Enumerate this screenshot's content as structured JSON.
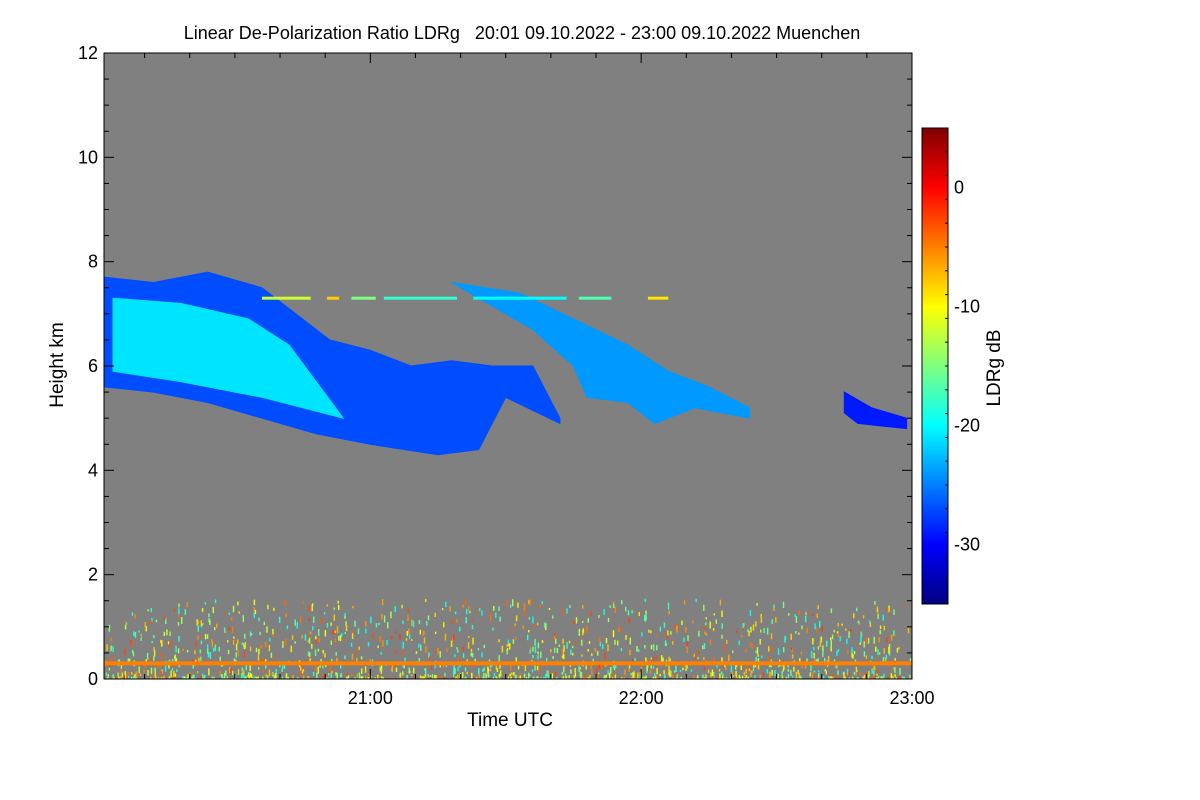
{
  "chart_data": {
    "type": "heatmap",
    "title": "Linear De-Polarization Ratio LDRg   20:01 09.10.2022 - 23:00 09.10.2022 Muenchen",
    "xlabel": "Time UTC",
    "ylabel": "Height km",
    "x_unit": "hours UTC",
    "xlim": [
      20.0167,
      23.0
    ],
    "ylim": [
      0,
      12
    ],
    "x_ticks": [
      {
        "value": 21.0,
        "label": "21:00"
      },
      {
        "value": 22.0,
        "label": "22:00"
      },
      {
        "value": 23.0,
        "label": "23:00"
      }
    ],
    "y_ticks": [
      {
        "value": 0,
        "label": "0"
      },
      {
        "value": 2,
        "label": "2"
      },
      {
        "value": 4,
        "label": "4"
      },
      {
        "value": 6,
        "label": "6"
      },
      {
        "value": 8,
        "label": "8"
      },
      {
        "value": 10,
        "label": "10"
      },
      {
        "value": 12,
        "label": "12"
      }
    ],
    "background_color": "#808080",
    "colorbar": {
      "label": "LDRg dB",
      "range": [
        -35,
        5
      ],
      "ticks": [
        {
          "value": 0,
          "label": "0"
        },
        {
          "value": -10,
          "label": "-10"
        },
        {
          "value": -20,
          "label": "-20"
        },
        {
          "value": -30,
          "label": "-30"
        }
      ],
      "colormap": [
        "#00007f",
        "#0000ff",
        "#007fff",
        "#00ffff",
        "#7fff7f",
        "#ffff00",
        "#ff7f00",
        "#ff0000",
        "#7f0000"
      ]
    },
    "features": [
      {
        "name": "cirrus-band-main",
        "top": [
          [
            20.02,
            7.7
          ],
          [
            20.2,
            7.6
          ],
          [
            20.4,
            7.8
          ],
          [
            20.6,
            7.5
          ],
          [
            20.75,
            6.9
          ],
          [
            20.85,
            6.5
          ],
          [
            21.0,
            6.3
          ],
          [
            21.15,
            6.0
          ],
          [
            21.3,
            6.1
          ],
          [
            21.45,
            6.0
          ],
          [
            21.6,
            6.0
          ],
          [
            21.7,
            5.0
          ]
        ],
        "bottom": [
          [
            21.7,
            4.9
          ],
          [
            21.5,
            5.4
          ],
          [
            21.4,
            4.4
          ],
          [
            21.25,
            4.3
          ],
          [
            21.0,
            4.5
          ],
          [
            20.8,
            4.7
          ],
          [
            20.6,
            5.0
          ],
          [
            20.4,
            5.3
          ],
          [
            20.2,
            5.5
          ],
          [
            20.02,
            5.6
          ]
        ],
        "ldr_db": -27
      },
      {
        "name": "cirrus-inner-streaks",
        "top": [
          [
            20.05,
            7.3
          ],
          [
            20.3,
            7.2
          ],
          [
            20.55,
            6.9
          ],
          [
            20.7,
            6.4
          ]
        ],
        "bottom": [
          [
            20.9,
            5.0
          ],
          [
            20.6,
            5.4
          ],
          [
            20.3,
            5.7
          ],
          [
            20.05,
            5.9
          ]
        ],
        "ldr_db": -21
      },
      {
        "name": "cirrus-upper-right",
        "top": [
          [
            21.3,
            7.6
          ],
          [
            21.55,
            7.4
          ],
          [
            21.75,
            6.9
          ],
          [
            21.95,
            6.4
          ],
          [
            22.1,
            5.9
          ],
          [
            22.25,
            5.6
          ],
          [
            22.4,
            5.2
          ]
        ],
        "bottom": [
          [
            22.4,
            5.0
          ],
          [
            22.2,
            5.2
          ],
          [
            22.05,
            4.9
          ],
          [
            21.95,
            5.3
          ],
          [
            21.8,
            5.4
          ],
          [
            21.75,
            6.0
          ],
          [
            21.6,
            6.7
          ],
          [
            21.4,
            7.3
          ]
        ],
        "ldr_db": -24
      },
      {
        "name": "cloud-patch-23h",
        "top": [
          [
            22.75,
            5.5
          ],
          [
            22.85,
            5.2
          ],
          [
            22.98,
            5.0
          ]
        ],
        "bottom": [
          [
            22.98,
            4.8
          ],
          [
            22.8,
            4.9
          ],
          [
            22.75,
            5.1
          ]
        ],
        "ldr_db": -29
      },
      {
        "name": "artefact-line-7.3km",
        "x_range": [
          20.6,
          22.1
        ],
        "height": 7.3,
        "ldr_db": -12
      },
      {
        "name": "near-surface-noise",
        "height_range": [
          0,
          1.5
        ],
        "ldr_db_range": [
          -20,
          -2
        ]
      },
      {
        "name": "surface-return-line",
        "height": 0.3,
        "ldr_db": -5
      }
    ]
  }
}
